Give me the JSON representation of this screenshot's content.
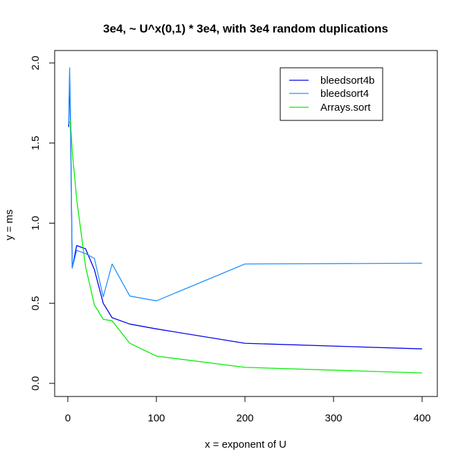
{
  "chart_data": {
    "type": "line",
    "title": "3e4, ~ U^x(0,1) * 3e4, with 3e4 random duplications",
    "xlabel": "x = exponent of U",
    "ylabel": "y = ms",
    "xlim": [
      0,
      400
    ],
    "ylim": [
      0,
      2.0
    ],
    "x_ticks": [
      "0",
      "100",
      "200",
      "300",
      "400"
    ],
    "y_ticks": [
      "0.0",
      "0.5",
      "1.0",
      "1.5",
      "2.0"
    ],
    "grid": false,
    "legend_position": "top-right",
    "x": [
      1,
      2,
      3,
      5,
      10,
      20,
      30,
      40,
      50,
      70,
      100,
      200,
      400
    ],
    "series": [
      {
        "name": "bleedsort4b",
        "color": "#0000ee",
        "values": [
          1.6,
          1.92,
          1.64,
          0.72,
          0.86,
          0.84,
          0.71,
          0.5,
          0.41,
          0.37,
          0.34,
          0.25,
          0.215
        ]
      },
      {
        "name": "bleedsort4",
        "color": "#1e90ff",
        "values": [
          1.62,
          1.97,
          1.7,
          0.72,
          0.83,
          0.81,
          0.78,
          0.54,
          0.745,
          0.545,
          0.515,
          0.745,
          0.75
        ]
      },
      {
        "name": "Arrays.sort",
        "color": "#00ee00",
        "values": [
          1.62,
          1.63,
          1.64,
          1.45,
          1.15,
          0.73,
          0.49,
          0.4,
          0.39,
          0.25,
          0.17,
          0.1,
          0.065
        ]
      }
    ]
  }
}
